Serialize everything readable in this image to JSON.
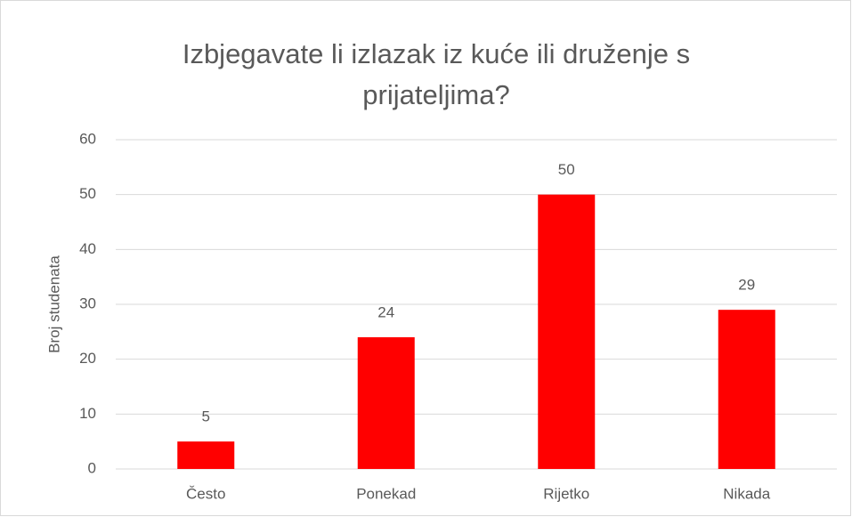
{
  "chart_data": {
    "type": "bar",
    "title": "Izbjegavate li izlazak iz kuće ili druženje s prijateljima?",
    "y_label": "Broj studenata",
    "categories": [
      "Često",
      "Ponekad",
      "Rijetko",
      "Nikada"
    ],
    "values": [
      5,
      24,
      50,
      29
    ],
    "color": "#ff0000",
    "ylim": [
      0,
      60
    ],
    "yticks": [
      0,
      10,
      20,
      30,
      40,
      50,
      60
    ],
    "grid": true
  }
}
